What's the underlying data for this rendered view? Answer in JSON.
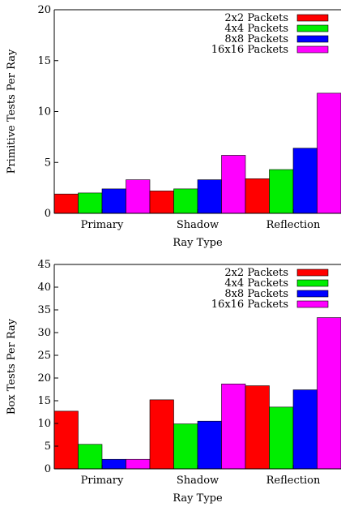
{
  "chart_data": [
    {
      "type": "bar",
      "title": "",
      "xlabel": "Ray Type",
      "ylabel": "Primitive Tests Per Ray",
      "ylim": [
        0,
        20
      ],
      "yticks": [
        0,
        5,
        10,
        15,
        20
      ],
      "categories": [
        "Primary",
        "Shadow",
        "Reflection"
      ],
      "legend_position": "top-right",
      "series": [
        {
          "name": "2x2 Packets",
          "color": "#ff0000",
          "values": [
            1.9,
            2.2,
            3.4
          ]
        },
        {
          "name": "4x4 Packets",
          "color": "#00ee00",
          "values": [
            2.0,
            2.4,
            4.3
          ]
        },
        {
          "name": "8x8 Packets",
          "color": "#0000ff",
          "values": [
            2.4,
            3.3,
            6.4
          ]
        },
        {
          "name": "16x16 Packets",
          "color": "#ff00ff",
          "values": [
            3.3,
            5.7,
            11.8
          ]
        }
      ]
    },
    {
      "type": "bar",
      "title": "",
      "xlabel": "Ray Type",
      "ylabel": "Box Tests Per Ray",
      "ylim": [
        0,
        45
      ],
      "yticks": [
        0,
        5,
        10,
        15,
        20,
        25,
        30,
        35,
        40,
        45
      ],
      "categories": [
        "Primary",
        "Shadow",
        "Reflection"
      ],
      "legend_position": "top-right",
      "series": [
        {
          "name": "2x2 Packets",
          "color": "#ff0000",
          "values": [
            12.7,
            15.2,
            18.3
          ]
        },
        {
          "name": "4x4 Packets",
          "color": "#00ee00",
          "values": [
            5.4,
            9.9,
            13.6
          ]
        },
        {
          "name": "8x8 Packets",
          "color": "#0000ff",
          "values": [
            2.1,
            10.5,
            17.4
          ]
        },
        {
          "name": "16x16 Packets",
          "color": "#ff00ff",
          "values": [
            2.1,
            18.7,
            33.3
          ]
        }
      ]
    }
  ]
}
